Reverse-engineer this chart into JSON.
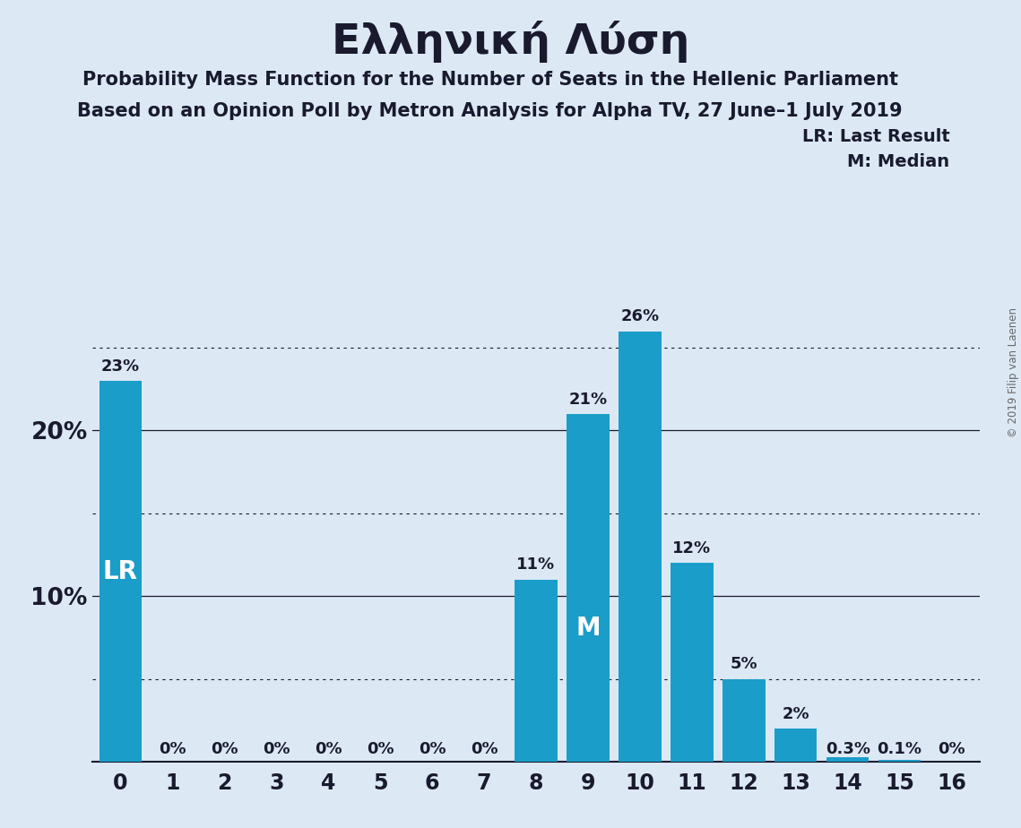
{
  "title": "Ελληνική Λύση",
  "subtitle1": "Probability Mass Function for the Number of Seats in the Hellenic Parliament",
  "subtitle2": "Based on an Opinion Poll by Metron Analysis for Alpha TV, 27 June–1 July 2019",
  "copyright": "© 2019 Filip van Laenen",
  "legend_lr": "LR: Last Result",
  "legend_m": "M: Median",
  "categories": [
    0,
    1,
    2,
    3,
    4,
    5,
    6,
    7,
    8,
    9,
    10,
    11,
    12,
    13,
    14,
    15,
    16
  ],
  "values": [
    0.23,
    0.0,
    0.0,
    0.0,
    0.0,
    0.0,
    0.0,
    0.0,
    0.11,
    0.21,
    0.26,
    0.12,
    0.05,
    0.02,
    0.003,
    0.001,
    0.0
  ],
  "labels": [
    "23%",
    "0%",
    "0%",
    "0%",
    "0%",
    "0%",
    "0%",
    "0%",
    "11%",
    "21%",
    "26%",
    "12%",
    "5%",
    "2%",
    "0.3%",
    "0.1%",
    "0%"
  ],
  "bar_color": "#1b9dc9",
  "background_color": "#dce9f5",
  "lr_bar": 0,
  "median_bar": 9,
  "lr_label": "LR",
  "median_label": "M",
  "ylim": [
    0,
    0.3
  ],
  "solid_grid_values": [
    0.1,
    0.2
  ],
  "dotted_grid_values": [
    0.05,
    0.15,
    0.25
  ],
  "title_fontsize": 34,
  "subtitle_fontsize": 15,
  "label_fontsize": 13,
  "tick_fontsize": 17,
  "ytick_fontsize": 19,
  "lr_inside_fontsize": 20,
  "median_inside_fontsize": 20,
  "legend_fontsize": 14
}
